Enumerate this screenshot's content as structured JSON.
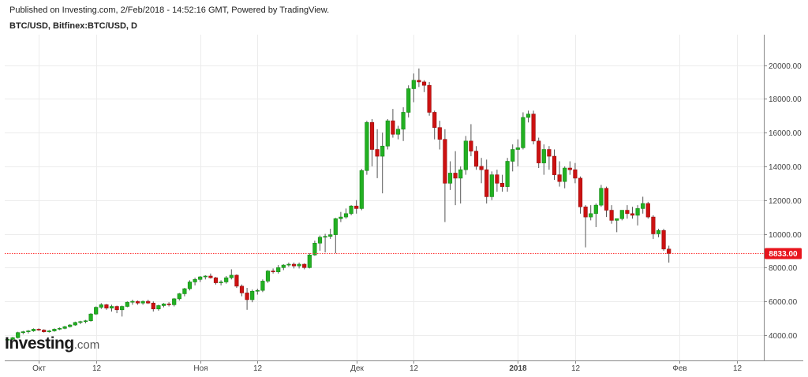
{
  "header": {
    "published": "Published on Investing.com, 2/Feb/2018 - 14:52:16 GMT, Powered by TradingView.",
    "symbol": "BTC/USD, Bitfinex:BTC/USD, D"
  },
  "logo": {
    "main": "Investing",
    "suffix": ".com"
  },
  "colors": {
    "up": "#22b022",
    "down": "#cc1111",
    "wick": "#555555",
    "price_line": "#ff3333",
    "price_label_bg": "#e8141c",
    "grid": "#ececec",
    "axis": "#888888"
  },
  "chart_data": {
    "type": "candlestick",
    "title": "",
    "series": "BTC/USD, Bitfinex:BTC/USD, D",
    "ylim": [
      2500,
      21800
    ],
    "y_ticks": [
      4000,
      6000,
      8000,
      10000,
      12000,
      14000,
      16000,
      18000,
      20000
    ],
    "y_tick_labels": [
      "4000.00",
      "6000.00",
      "8000.00",
      "10000.00",
      "12000.00",
      "14000.00",
      "16000.00",
      "18000.00",
      "20000.00"
    ],
    "x_ticks": [
      {
        "label": "Окт",
        "bar": 6,
        "bold": false
      },
      {
        "label": "12",
        "bar": 17,
        "bold": false
      },
      {
        "label": "Ноя",
        "bar": 37,
        "bold": false
      },
      {
        "label": "12",
        "bar": 48,
        "bold": false
      },
      {
        "label": "Дек",
        "bar": 67,
        "bold": false
      },
      {
        "label": "12",
        "bar": 78,
        "bold": false
      },
      {
        "label": "2018",
        "bar": 98,
        "bold": true
      },
      {
        "label": "12",
        "bar": 109,
        "bold": false
      },
      {
        "label": "Фев",
        "bar": 129,
        "bold": false
      },
      {
        "label": "12",
        "bar": 140,
        "bold": false
      }
    ],
    "last_price": 8833,
    "last_price_label": "8833.00",
    "candles": [
      [
        3700,
        3800,
        3600,
        3750
      ],
      [
        3750,
        3900,
        3700,
        3850
      ],
      [
        3850,
        4200,
        3800,
        4150
      ],
      [
        4150,
        4250,
        4050,
        4200
      ],
      [
        4200,
        4300,
        4100,
        4250
      ],
      [
        4250,
        4400,
        4200,
        4350
      ],
      [
        4350,
        4400,
        4250,
        4300
      ],
      [
        4300,
        4350,
        4150,
        4200
      ],
      [
        4200,
        4300,
        4150,
        4250
      ],
      [
        4250,
        4400,
        4200,
        4350
      ],
      [
        4350,
        4450,
        4300,
        4400
      ],
      [
        4400,
        4550,
        4350,
        4500
      ],
      [
        4500,
        4650,
        4450,
        4600
      ],
      [
        4600,
        4800,
        4550,
        4750
      ],
      [
        4750,
        4850,
        4650,
        4800
      ],
      [
        4800,
        4900,
        4700,
        4850
      ],
      [
        4850,
        5300,
        4800,
        5250
      ],
      [
        5250,
        5700,
        5200,
        5650
      ],
      [
        5650,
        5900,
        5550,
        5800
      ],
      [
        5800,
        5850,
        5500,
        5600
      ],
      [
        5600,
        5800,
        5400,
        5700
      ],
      [
        5700,
        5750,
        5300,
        5500
      ],
      [
        5500,
        5750,
        5100,
        5700
      ],
      [
        5700,
        6000,
        5650,
        5950
      ],
      [
        5950,
        6100,
        5800,
        6000
      ],
      [
        6000,
        6050,
        5800,
        5900
      ],
      [
        5900,
        6050,
        5800,
        6000
      ],
      [
        6000,
        6100,
        5850,
        5900
      ],
      [
        5900,
        6000,
        5400,
        5550
      ],
      [
        5550,
        5800,
        5450,
        5750
      ],
      [
        5750,
        5900,
        5650,
        5850
      ],
      [
        5850,
        5950,
        5700,
        5800
      ],
      [
        5800,
        6200,
        5700,
        6150
      ],
      [
        6150,
        6500,
        6050,
        6450
      ],
      [
        6450,
        6800,
        6300,
        6750
      ],
      [
        6750,
        7250,
        6650,
        7150
      ],
      [
        7150,
        7400,
        6950,
        7300
      ],
      [
        7300,
        7500,
        7150,
        7450
      ],
      [
        7450,
        7550,
        7300,
        7500
      ],
      [
        7500,
        7650,
        7350,
        7400
      ],
      [
        7400,
        7450,
        7000,
        7100
      ],
      [
        7100,
        7250,
        6950,
        7150
      ],
      [
        7150,
        7500,
        7050,
        7400
      ],
      [
        7400,
        7900,
        7300,
        7550
      ],
      [
        7550,
        7600,
        6800,
        6900
      ],
      [
        6900,
        7000,
        6300,
        6500
      ],
      [
        6500,
        6800,
        5500,
        6100
      ],
      [
        6100,
        6700,
        5950,
        6600
      ],
      [
        6600,
        6750,
        6400,
        6650
      ],
      [
        6650,
        7300,
        6550,
        7200
      ],
      [
        7200,
        7850,
        7100,
        7800
      ],
      [
        7800,
        7950,
        7650,
        7750
      ],
      [
        7750,
        8150,
        7650,
        8000
      ],
      [
        8000,
        8200,
        7850,
        8150
      ],
      [
        8150,
        8300,
        8050,
        8200
      ],
      [
        8200,
        8300,
        7950,
        8100
      ],
      [
        8100,
        8300,
        7950,
        8200
      ],
      [
        8200,
        8250,
        7900,
        8000
      ],
      [
        8000,
        8850,
        7950,
        8750
      ],
      [
        8750,
        9600,
        8700,
        9450
      ],
      [
        9450,
        9900,
        9000,
        9800
      ],
      [
        9800,
        10000,
        8900,
        9850
      ],
      [
        9850,
        10300,
        9700,
        9950
      ],
      [
        9950,
        10950,
        8850,
        10900
      ],
      [
        10900,
        11300,
        10700,
        11000
      ],
      [
        11000,
        11500,
        10900,
        11200
      ],
      [
        11200,
        11700,
        11100,
        11650
      ],
      [
        11650,
        12000,
        11200,
        11500
      ],
      [
        11500,
        13850,
        11400,
        13750
      ],
      [
        13750,
        16700,
        13500,
        16600
      ],
      [
        16600,
        16800,
        14000,
        15000
      ],
      [
        15000,
        16200,
        13300,
        14600
      ],
      [
        14600,
        16000,
        12400,
        15200
      ],
      [
        15200,
        16800,
        15000,
        16700
      ],
      [
        16700,
        17400,
        15700,
        15900
      ],
      [
        15900,
        16400,
        15600,
        16200
      ],
      [
        16200,
        17500,
        15500,
        17200
      ],
      [
        17200,
        18800,
        16900,
        18600
      ],
      [
        18600,
        19500,
        17800,
        19100
      ],
      [
        19100,
        19800,
        18700,
        19000
      ],
      [
        19000,
        19100,
        18400,
        18800
      ],
      [
        18800,
        19000,
        17000,
        17200
      ],
      [
        17200,
        17300,
        15600,
        16300
      ],
      [
        16300,
        16700,
        15000,
        15600
      ],
      [
        15600,
        16200,
        10700,
        13000
      ],
      [
        13000,
        14300,
        12600,
        13600
      ],
      [
        13600,
        14900,
        11700,
        13300
      ],
      [
        13300,
        14000,
        11800,
        13800
      ],
      [
        13800,
        15800,
        13500,
        15500
      ],
      [
        15500,
        16500,
        14600,
        14900
      ],
      [
        14900,
        15200,
        13800,
        14000
      ],
      [
        14000,
        14500,
        13000,
        13800
      ],
      [
        13800,
        14400,
        11800,
        12200
      ],
      [
        12200,
        13700,
        12000,
        13500
      ],
      [
        13500,
        13800,
        12500,
        13000
      ],
      [
        13000,
        13500,
        12500,
        12800
      ],
      [
        12800,
        14500,
        12500,
        14300
      ],
      [
        14300,
        15300,
        13700,
        15000
      ],
      [
        15000,
        15600,
        14000,
        15100
      ],
      [
        15100,
        17200,
        15000,
        16900
      ],
      [
        16900,
        17300,
        16600,
        17100
      ],
      [
        17100,
        17300,
        15300,
        15500
      ],
      [
        15500,
        15700,
        13900,
        14200
      ],
      [
        14200,
        15300,
        13500,
        15000
      ],
      [
        15000,
        15200,
        13800,
        14600
      ],
      [
        14600,
        15000,
        13200,
        13500
      ],
      [
        13500,
        14300,
        12800,
        13100
      ],
      [
        13100,
        14000,
        12700,
        13900
      ],
      [
        13900,
        14300,
        13500,
        13800
      ],
      [
        13800,
        14200,
        13000,
        13300
      ],
      [
        13300,
        13400,
        11200,
        11600
      ],
      [
        11600,
        11700,
        9200,
        11000
      ],
      [
        11000,
        11700,
        10800,
        11200
      ],
      [
        11200,
        11800,
        10400,
        11700
      ],
      [
        11700,
        12900,
        11600,
        12700
      ],
      [
        12700,
        12800,
        11000,
        11400
      ],
      [
        11400,
        11700,
        10600,
        10800
      ],
      [
        10800,
        10900,
        10100,
        10900
      ],
      [
        10900,
        11400,
        10800,
        11400
      ],
      [
        11400,
        11700,
        10900,
        11200
      ],
      [
        11200,
        11600,
        10900,
        11100
      ],
      [
        11100,
        11700,
        10500,
        11500
      ],
      [
        11500,
        12200,
        11200,
        11800
      ],
      [
        11800,
        11900,
        10900,
        11000
      ],
      [
        11000,
        11100,
        9700,
        10000
      ],
      [
        10000,
        10300,
        9800,
        10200
      ],
      [
        10200,
        10300,
        9000,
        9100
      ],
      [
        9100,
        9300,
        8300,
        8833
      ]
    ]
  }
}
